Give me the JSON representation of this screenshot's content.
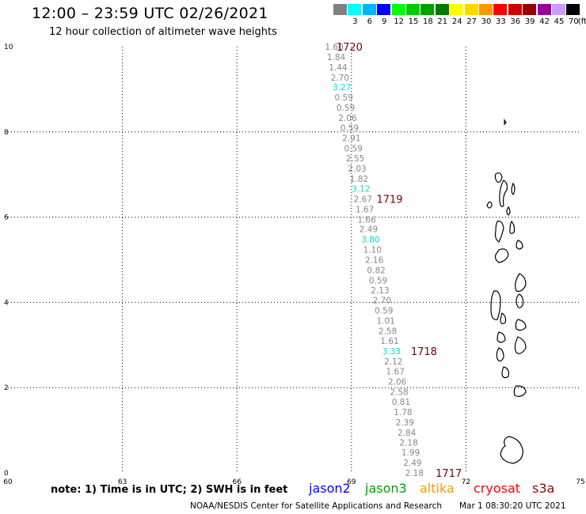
{
  "title": "12:00 – 23:59 UTC 02/26/2021",
  "subtitle": "12 hour collection of altimeter wave heights",
  "color_scale": {
    "unit": "(ft)",
    "swatches": [
      {
        "label": "",
        "color": "#7f7f7f"
      },
      {
        "label": "3",
        "color": "#00ffff"
      },
      {
        "label": "6",
        "color": "#00b4ff"
      },
      {
        "label": "9",
        "color": "#0000ff"
      },
      {
        "label": "12",
        "color": "#00ff00"
      },
      {
        "label": "15",
        "color": "#00cc00"
      },
      {
        "label": "18",
        "color": "#00a000"
      },
      {
        "label": "21",
        "color": "#007a00"
      },
      {
        "label": "24",
        "color": "#ffff00"
      },
      {
        "label": "27",
        "color": "#ffd700"
      },
      {
        "label": "30",
        "color": "#ff9900"
      },
      {
        "label": "33",
        "color": "#ff0000"
      },
      {
        "label": "36",
        "color": "#cc0000"
      },
      {
        "label": "39",
        "color": "#990000"
      },
      {
        "label": "42",
        "color": "#990099"
      },
      {
        "label": "45",
        "color": "#cc99ff"
      },
      {
        "label": "70",
        "color": "#000000"
      }
    ]
  },
  "map": {
    "lon_range": [
      60,
      75
    ],
    "lat_range": [
      0,
      10
    ],
    "x_ticks": [
      {
        "value": 60,
        "label": "60"
      },
      {
        "value": 63,
        "label": "63"
      },
      {
        "value": 66,
        "label": "66"
      },
      {
        "value": 69,
        "label": "69"
      },
      {
        "value": 72,
        "label": "72"
      },
      {
        "value": 75,
        "label": "75"
      }
    ],
    "y_ticks": [
      {
        "value": 0,
        "label": "0"
      },
      {
        "value": 2,
        "label": "2"
      },
      {
        "value": 4,
        "label": "4"
      },
      {
        "value": 6,
        "label": "6"
      },
      {
        "value": 8,
        "label": "8"
      },
      {
        "value": 10,
        "label": "10"
      }
    ],
    "gridlines": true
  },
  "track": {
    "color_default": "#888888",
    "color_highlight": "#00dddd",
    "points": [
      {
        "lon": 68.55,
        "lat": 10.0,
        "value": "1.60",
        "hi": false
      },
      {
        "lon": 68.6,
        "lat": 9.76,
        "value": "1.84",
        "hi": false
      },
      {
        "lon": 68.65,
        "lat": 9.52,
        "value": "1.44",
        "hi": false
      },
      {
        "lon": 68.7,
        "lat": 9.28,
        "value": "2.70",
        "hi": false
      },
      {
        "lon": 68.75,
        "lat": 9.05,
        "value": "3.27",
        "hi": true
      },
      {
        "lon": 68.8,
        "lat": 8.81,
        "value": "0.59",
        "hi": false
      },
      {
        "lon": 68.85,
        "lat": 8.57,
        "value": "0.59",
        "hi": false
      },
      {
        "lon": 68.9,
        "lat": 8.33,
        "value": "2.06",
        "hi": false
      },
      {
        "lon": 68.95,
        "lat": 8.1,
        "value": "0.59",
        "hi": false
      },
      {
        "lon": 69.0,
        "lat": 7.86,
        "value": "2.91",
        "hi": false
      },
      {
        "lon": 69.05,
        "lat": 7.62,
        "value": "0.59",
        "hi": false
      },
      {
        "lon": 69.1,
        "lat": 7.38,
        "value": "2.55",
        "hi": false
      },
      {
        "lon": 69.15,
        "lat": 7.14,
        "value": "2.03",
        "hi": false
      },
      {
        "lon": 69.2,
        "lat": 6.9,
        "value": "1.82",
        "hi": false
      },
      {
        "lon": 69.25,
        "lat": 6.67,
        "value": "3.12",
        "hi": true
      },
      {
        "lon": 69.3,
        "lat": 6.43,
        "value": "2.67",
        "hi": false
      },
      {
        "lon": 69.35,
        "lat": 6.19,
        "value": "1.67",
        "hi": false
      },
      {
        "lon": 69.4,
        "lat": 5.95,
        "value": "1.66",
        "hi": false
      },
      {
        "lon": 69.45,
        "lat": 5.72,
        "value": "2.49",
        "hi": false
      },
      {
        "lon": 69.5,
        "lat": 5.48,
        "value": "3.80",
        "hi": true
      },
      {
        "lon": 69.55,
        "lat": 5.24,
        "value": "1.10",
        "hi": false
      },
      {
        "lon": 69.6,
        "lat": 5.0,
        "value": "2.16",
        "hi": false
      },
      {
        "lon": 69.65,
        "lat": 4.76,
        "value": "0.82",
        "hi": false
      },
      {
        "lon": 69.7,
        "lat": 4.52,
        "value": "0.59",
        "hi": false
      },
      {
        "lon": 69.75,
        "lat": 4.29,
        "value": "2.13",
        "hi": false
      },
      {
        "lon": 69.8,
        "lat": 4.05,
        "value": "2.70",
        "hi": false
      },
      {
        "lon": 69.85,
        "lat": 3.81,
        "value": "0.59",
        "hi": false
      },
      {
        "lon": 69.9,
        "lat": 3.57,
        "value": "1.01",
        "hi": false
      },
      {
        "lon": 69.95,
        "lat": 3.33,
        "value": "2.58",
        "hi": false
      },
      {
        "lon": 70.0,
        "lat": 3.1,
        "value": "1.61",
        "hi": false
      },
      {
        "lon": 70.05,
        "lat": 2.86,
        "value": "3.33",
        "hi": true
      },
      {
        "lon": 70.1,
        "lat": 2.62,
        "value": "2.12",
        "hi": false
      },
      {
        "lon": 70.15,
        "lat": 2.38,
        "value": "1.67",
        "hi": false
      },
      {
        "lon": 70.2,
        "lat": 2.14,
        "value": "2.06",
        "hi": false
      },
      {
        "lon": 70.25,
        "lat": 1.9,
        "value": "2.58",
        "hi": false
      },
      {
        "lon": 70.3,
        "lat": 1.67,
        "value": "0.81",
        "hi": false
      },
      {
        "lon": 70.35,
        "lat": 1.43,
        "value": "1.78",
        "hi": false
      },
      {
        "lon": 70.4,
        "lat": 1.19,
        "value": "2.39",
        "hi": false
      },
      {
        "lon": 70.45,
        "lat": 0.95,
        "value": "2.84",
        "hi": false
      },
      {
        "lon": 70.5,
        "lat": 0.71,
        "value": "2.18",
        "hi": false
      },
      {
        "lon": 70.55,
        "lat": 0.48,
        "value": "1.99",
        "hi": false
      },
      {
        "lon": 70.6,
        "lat": 0.24,
        "value": "2.49",
        "hi": false
      },
      {
        "lon": 70.65,
        "lat": 0.0,
        "value": "2.18",
        "hi": false
      }
    ],
    "time_labels": [
      {
        "lon": 68.95,
        "lat": 10.0,
        "label": "1720"
      },
      {
        "lon": 70.0,
        "lat": 6.43,
        "label": "1719"
      },
      {
        "lon": 70.9,
        "lat": 2.86,
        "label": "1718"
      },
      {
        "lon": 71.55,
        "lat": 0.0,
        "label": "1717"
      }
    ],
    "time_label_color": "#7a0000"
  },
  "footer": {
    "note": "note: 1) Time is in UTC; 2) SWH is in feet",
    "satellites": [
      {
        "name": "jason2",
        "color": "#0000ff"
      },
      {
        "name": "jason3",
        "color": "#00a000"
      },
      {
        "name": "altika",
        "color": "#ff9900"
      },
      {
        "name": "cryosat",
        "color": "#ff0000"
      },
      {
        "name": "s3a",
        "color": "#990000"
      }
    ],
    "credit": "NOAA/NESDIS Center for Satellite Applications and Research",
    "timestamp": "Mar  1 08:30:20 UTC 2021"
  }
}
